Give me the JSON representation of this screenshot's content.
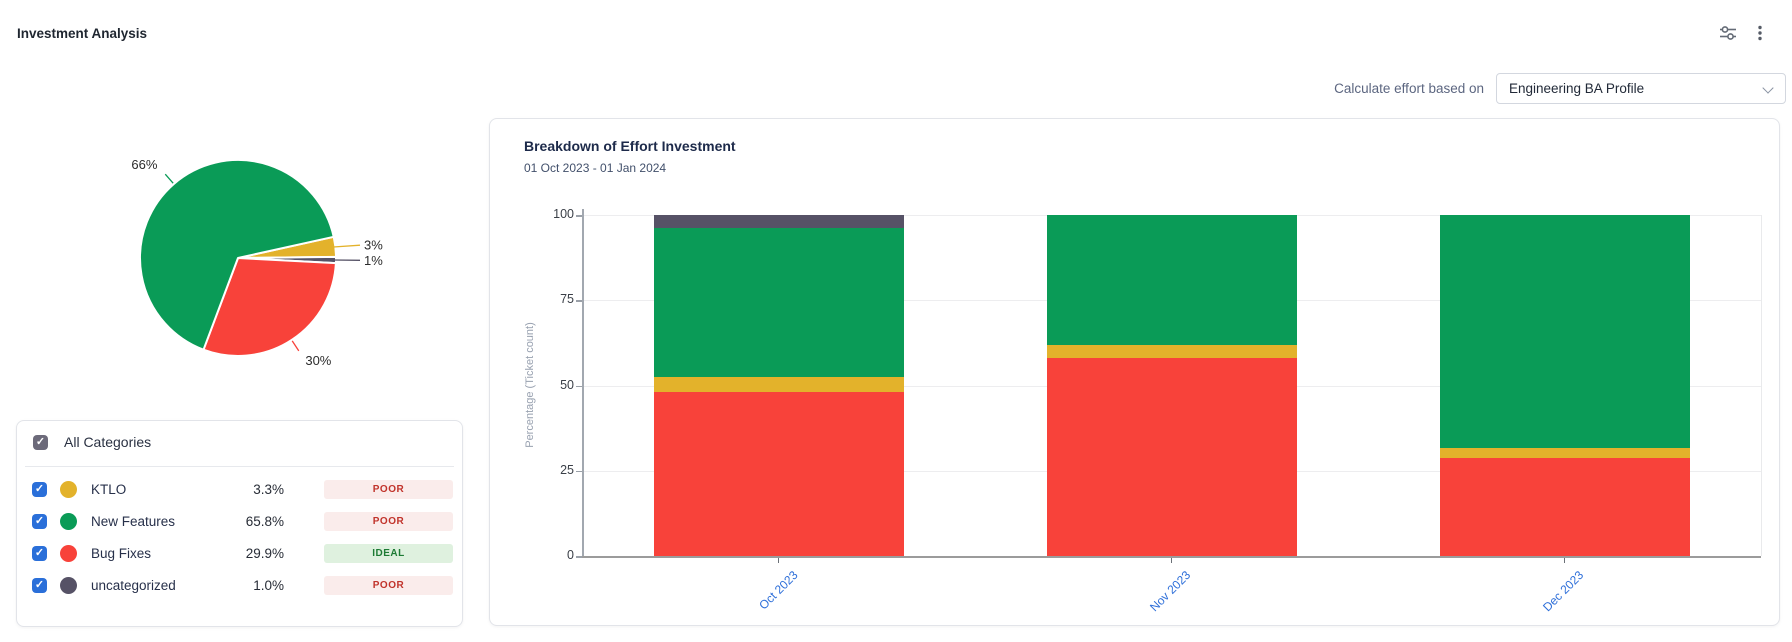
{
  "header": {
    "title": "Investment Analysis"
  },
  "toolbar": {
    "filter_icon": "sliders-horizontal",
    "menu_icon": "kebab-vertical"
  },
  "controls": {
    "label": "Calculate effort based on",
    "selected_profile": "Engineering BA Profile"
  },
  "legend": {
    "all_label": "All Categories",
    "items": [
      {
        "name": "KTLO",
        "percent": "3.3%",
        "status": "POOR",
        "status_type": "poor",
        "color": "#e3b22b",
        "checked": true
      },
      {
        "name": "New Features",
        "percent": "65.8%",
        "status": "POOR",
        "status_type": "poor",
        "color": "#0a9b57",
        "checked": true
      },
      {
        "name": "Bug Fixes",
        "percent": "29.9%",
        "status": "IDEAL",
        "status_type": "ideal",
        "color": "#f8423a",
        "checked": true
      },
      {
        "name": "uncategorized",
        "percent": "1.0%",
        "status": "POOR",
        "status_type": "poor",
        "color": "#565266",
        "checked": true
      }
    ]
  },
  "status_colors": {
    "poor": {
      "text": "#c1332b",
      "bg": "#faeceb"
    },
    "ideal": {
      "text": "#1d7b34",
      "bg": "#dff1df"
    }
  },
  "checkbox_colors": {
    "item": "#2a6fd9",
    "all": "#6c6a7a"
  },
  "chart_data": [
    {
      "type": "pie",
      "direction": "clockwise",
      "start_angle_deg": -12.5,
      "slices": [
        {
          "name": "KTLO",
          "value": 3.3,
          "label": "3%",
          "color": "#e3b22b"
        },
        {
          "name": "uncategorized",
          "value": 1.0,
          "label": "1%",
          "color": "#565266"
        },
        {
          "name": "Bug Fixes",
          "value": 29.9,
          "label": "30%",
          "color": "#f8423a"
        },
        {
          "name": "New Features",
          "value": 65.8,
          "label": "66%",
          "color": "#0a9b57"
        }
      ]
    },
    {
      "type": "bar",
      "stacked": true,
      "title": "Breakdown of Effort Investment",
      "subtitle": "01 Oct 2023 - 01 Jan 2024",
      "ylabel": "Percentage (Ticket count)",
      "ylim": [
        0,
        100
      ],
      "yticks": [
        0,
        25,
        50,
        75,
        100
      ],
      "grid": true,
      "categories": [
        "Oct 2023",
        "Nov 2023",
        "Dec 2023"
      ],
      "x_label_color": "#2e6fd9",
      "series": [
        {
          "name": "Bug Fixes",
          "color": "#f8423a",
          "values": [
            48.0,
            58.0,
            28.8
          ]
        },
        {
          "name": "KTLO",
          "color": "#e3b22b",
          "values": [
            4.4,
            3.9,
            3.0
          ]
        },
        {
          "name": "New Features",
          "color": "#0a9b57",
          "values": [
            43.7,
            38.1,
            68.2
          ]
        },
        {
          "name": "uncategorized",
          "color": "#565266",
          "values": [
            3.9,
            0,
            0
          ]
        }
      ]
    }
  ]
}
